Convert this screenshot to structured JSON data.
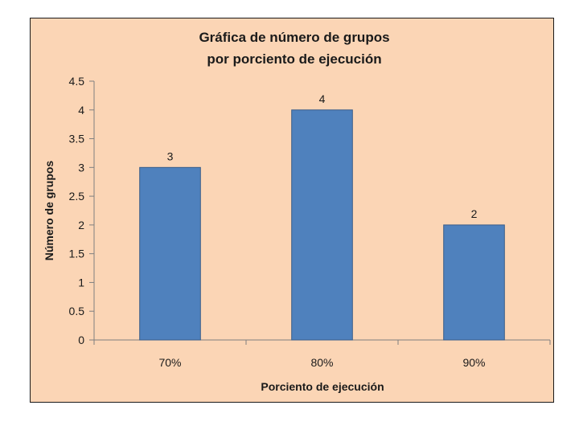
{
  "colors": {
    "background": "#fbd5b5",
    "bar_fill": "#4f81bd",
    "bar_stroke": "#385d8a",
    "axis": "#7f7f7f",
    "text": "#1a1a1a"
  },
  "chart_data": {
    "type": "bar",
    "title": [
      "Gráfica de número de grupos",
      "por porciento de ejecución"
    ],
    "xlabel": "Porciento de ejecución",
    "ylabel": "Número de grupos",
    "categories": [
      "70%",
      "80%",
      "90%"
    ],
    "values": [
      3,
      4,
      2
    ],
    "data_labels": [
      "3",
      "4",
      "2"
    ],
    "ylim": [
      0,
      4.5
    ],
    "yticks": [
      "0",
      "0.5",
      "1",
      "1.5",
      "2",
      "2.5",
      "3",
      "3.5",
      "4",
      "4.5"
    ],
    "grid": false,
    "legend": "none"
  }
}
